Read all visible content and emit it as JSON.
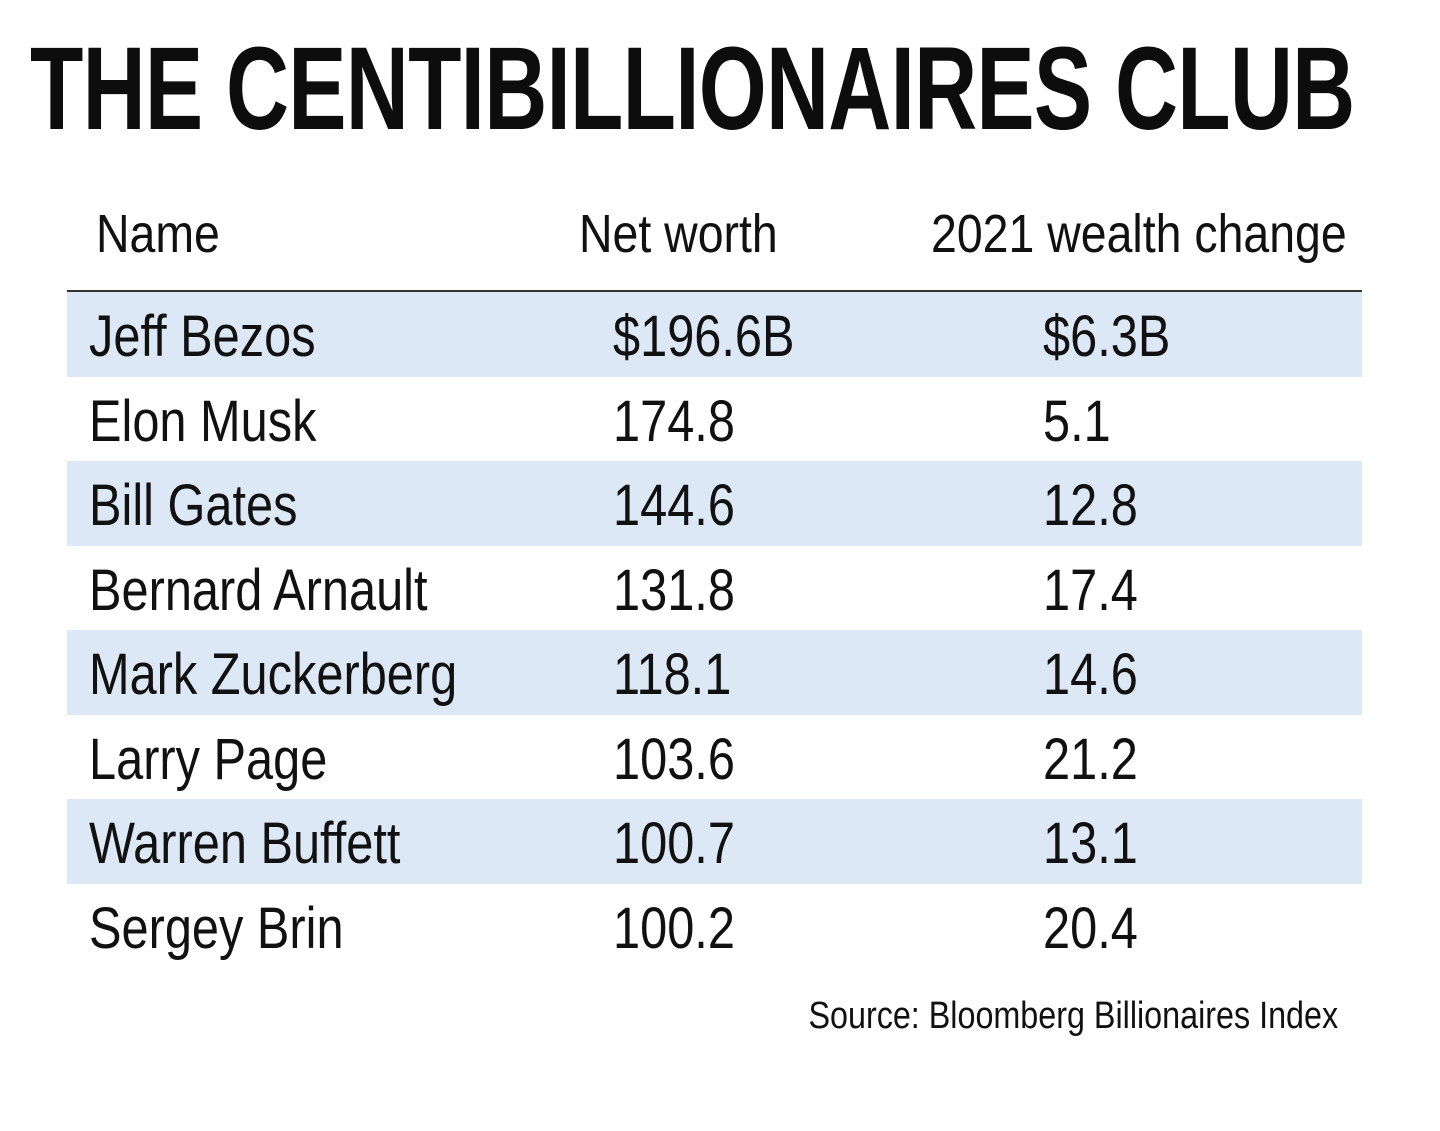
{
  "title": "THE CENTIBILLIONAIRES CLUB",
  "source": "Source: Bloomberg Billionaires Index",
  "colors": {
    "row_shade": "#dce8f5",
    "text": "#111111",
    "rule": "#333333"
  },
  "chart_data": {
    "type": "table",
    "title": "THE CENTIBILLIONAIRES CLUB",
    "columns": [
      "Name",
      "Net worth",
      "2021 wealth change"
    ],
    "rows": [
      {
        "name": "Jeff Bezos",
        "net_worth": "$196.6B",
        "wealth_change": "$6.3B"
      },
      {
        "name": "Elon Musk",
        "net_worth": "174.8",
        "wealth_change": "5.1"
      },
      {
        "name": "Bill Gates",
        "net_worth": "144.6",
        "wealth_change": "12.8"
      },
      {
        "name": "Bernard Arnault",
        "net_worth": "131.8",
        "wealth_change": "17.4"
      },
      {
        "name": "Mark Zuckerberg",
        "net_worth": "118.1",
        "wealth_change": "14.6"
      },
      {
        "name": "Larry Page",
        "net_worth": "103.6",
        "wealth_change": "21.2"
      },
      {
        "name": "Warren Buffett",
        "net_worth": "100.7",
        "wealth_change": "13.1"
      },
      {
        "name": "Sergey Brin",
        "net_worth": "100.2",
        "wealth_change": "20.4"
      }
    ],
    "source": "Source: Bloomberg Billionaires Index"
  }
}
